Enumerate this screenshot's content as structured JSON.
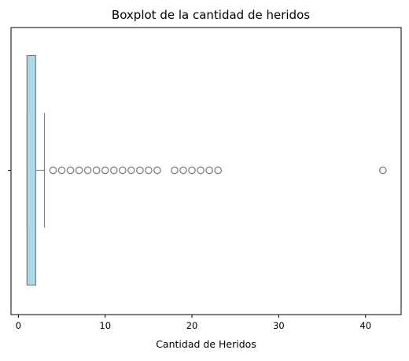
{
  "chart_data": {
    "type": "boxplot",
    "orientation": "horizontal",
    "title": "Boxplot de la cantidad de heridos",
    "xlabel": "Cantidad de Heridos",
    "ylabel": "",
    "xlim": [
      -0.85,
      44.1
    ],
    "x_ticks": [
      0,
      10,
      20,
      30,
      40
    ],
    "x_tick_labels": [
      "0",
      "10",
      "20",
      "30",
      "40"
    ],
    "box": {
      "whisker_low": 1,
      "q1": 1,
      "median": 1,
      "q3": 2,
      "whisker_high": 3
    },
    "outliers": [
      4,
      5,
      6,
      7,
      8,
      9,
      10,
      11,
      12,
      13,
      14,
      15,
      16,
      18,
      19,
      20,
      21,
      22,
      23,
      42
    ],
    "grid": false,
    "colors": {
      "box_fill": "#add8e6",
      "box_edge": "#7f7f7f",
      "outlier_edge": "#7f7f7f"
    }
  }
}
